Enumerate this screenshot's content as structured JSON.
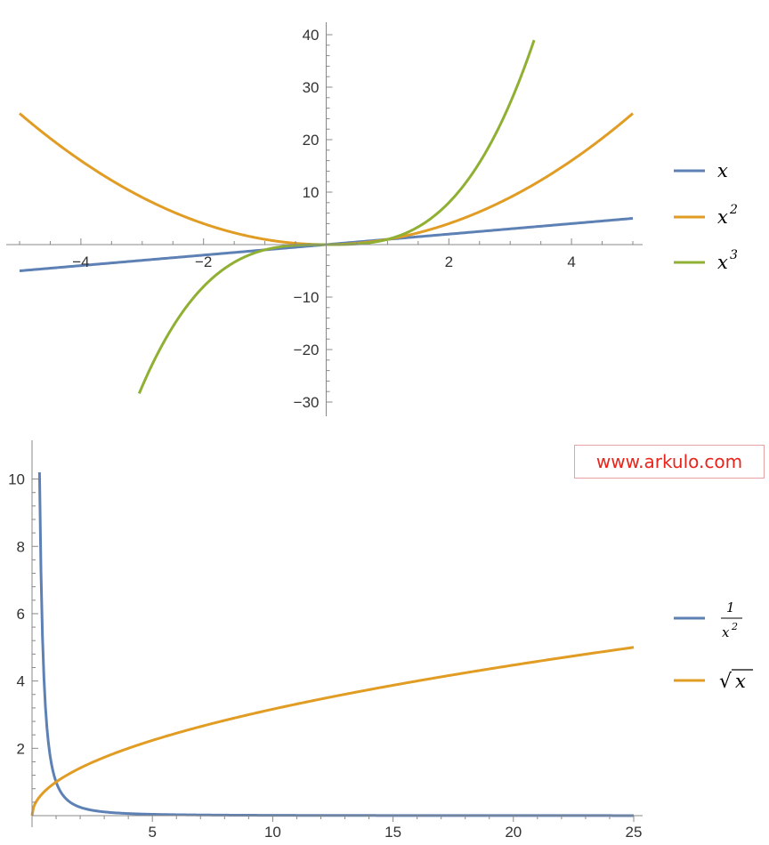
{
  "chart_data": [
    {
      "type": "line",
      "xlim": [
        -5,
        5
      ],
      "ylim": [
        -30,
        40
      ],
      "x_ticks": [
        -4,
        -2,
        2,
        4
      ],
      "x_tick_labels": [
        "−4",
        "−2",
        "2",
        "4"
      ],
      "y_ticks": [
        -30,
        -20,
        -10,
        10,
        20,
        30,
        40
      ],
      "y_tick_labels": [
        "−30",
        "−20",
        "−10",
        "10",
        "20",
        "30",
        "40"
      ],
      "grid": false,
      "legend_position": "right",
      "series": [
        {
          "name": "x",
          "color": "#5e81b5",
          "x_range": [
            -5,
            5
          ],
          "x": [
            -5,
            5
          ],
          "y": [
            -5,
            5
          ]
        },
        {
          "name": "x2",
          "color": "#e19c24",
          "x_range": [
            -5,
            5
          ],
          "x": [
            -5,
            -4,
            -3,
            -2,
            -1,
            0,
            1,
            2,
            3,
            4,
            5
          ],
          "y": [
            25,
            16,
            9,
            4,
            1,
            0,
            1,
            4,
            9,
            16,
            25
          ]
        },
        {
          "name": "x3",
          "color": "#8fb032",
          "x_range": [
            -3.05,
            3.39
          ],
          "x": [
            -3.05,
            -2,
            -1,
            0,
            1,
            2,
            3,
            3.39
          ],
          "y": [
            -28.4,
            -8,
            -1,
            0,
            1,
            8,
            27,
            39
          ]
        }
      ]
    },
    {
      "type": "line",
      "xlim": [
        0,
        25
      ],
      "ylim": [
        0,
        10.2
      ],
      "x_ticks": [
        5,
        10,
        15,
        20,
        25
      ],
      "x_tick_labels": [
        "5",
        "10",
        "15",
        "20",
        "25"
      ],
      "y_ticks": [
        2,
        4,
        6,
        8,
        10
      ],
      "y_tick_labels": [
        "2",
        "4",
        "6",
        "8",
        "10"
      ],
      "grid": false,
      "legend_position": "right",
      "series": [
        {
          "name": "1/x2",
          "color": "#5e81b5",
          "x_range": [
            0.31,
            25
          ],
          "x": [
            0.31,
            0.5,
            1,
            2,
            3,
            5,
            10,
            25
          ],
          "y": [
            10.2,
            4,
            1,
            0.25,
            0.11,
            0.04,
            0.01,
            0.0016
          ]
        },
        {
          "name": "√x",
          "color": "#e19c24",
          "x_range": [
            0,
            25
          ],
          "x": [
            0,
            1,
            4,
            9,
            16,
            25
          ],
          "y": [
            0,
            1,
            2,
            3,
            4,
            5
          ]
        }
      ]
    }
  ],
  "legend_top": [
    {
      "color": "#5e81b5",
      "base": "x",
      "sup": ""
    },
    {
      "color": "#e19c24",
      "base": "x",
      "sup": "2"
    },
    {
      "color": "#8fb032",
      "base": "x",
      "sup": "3"
    }
  ],
  "legend_bottom": [
    {
      "color": "#5e81b5",
      "numerator": "1",
      "denominator_base": "x",
      "denominator_sup": "2"
    },
    {
      "color": "#e19c24",
      "radical": "√",
      "radicand": "x"
    }
  ],
  "watermark": {
    "text": "www.arkulo.com"
  }
}
